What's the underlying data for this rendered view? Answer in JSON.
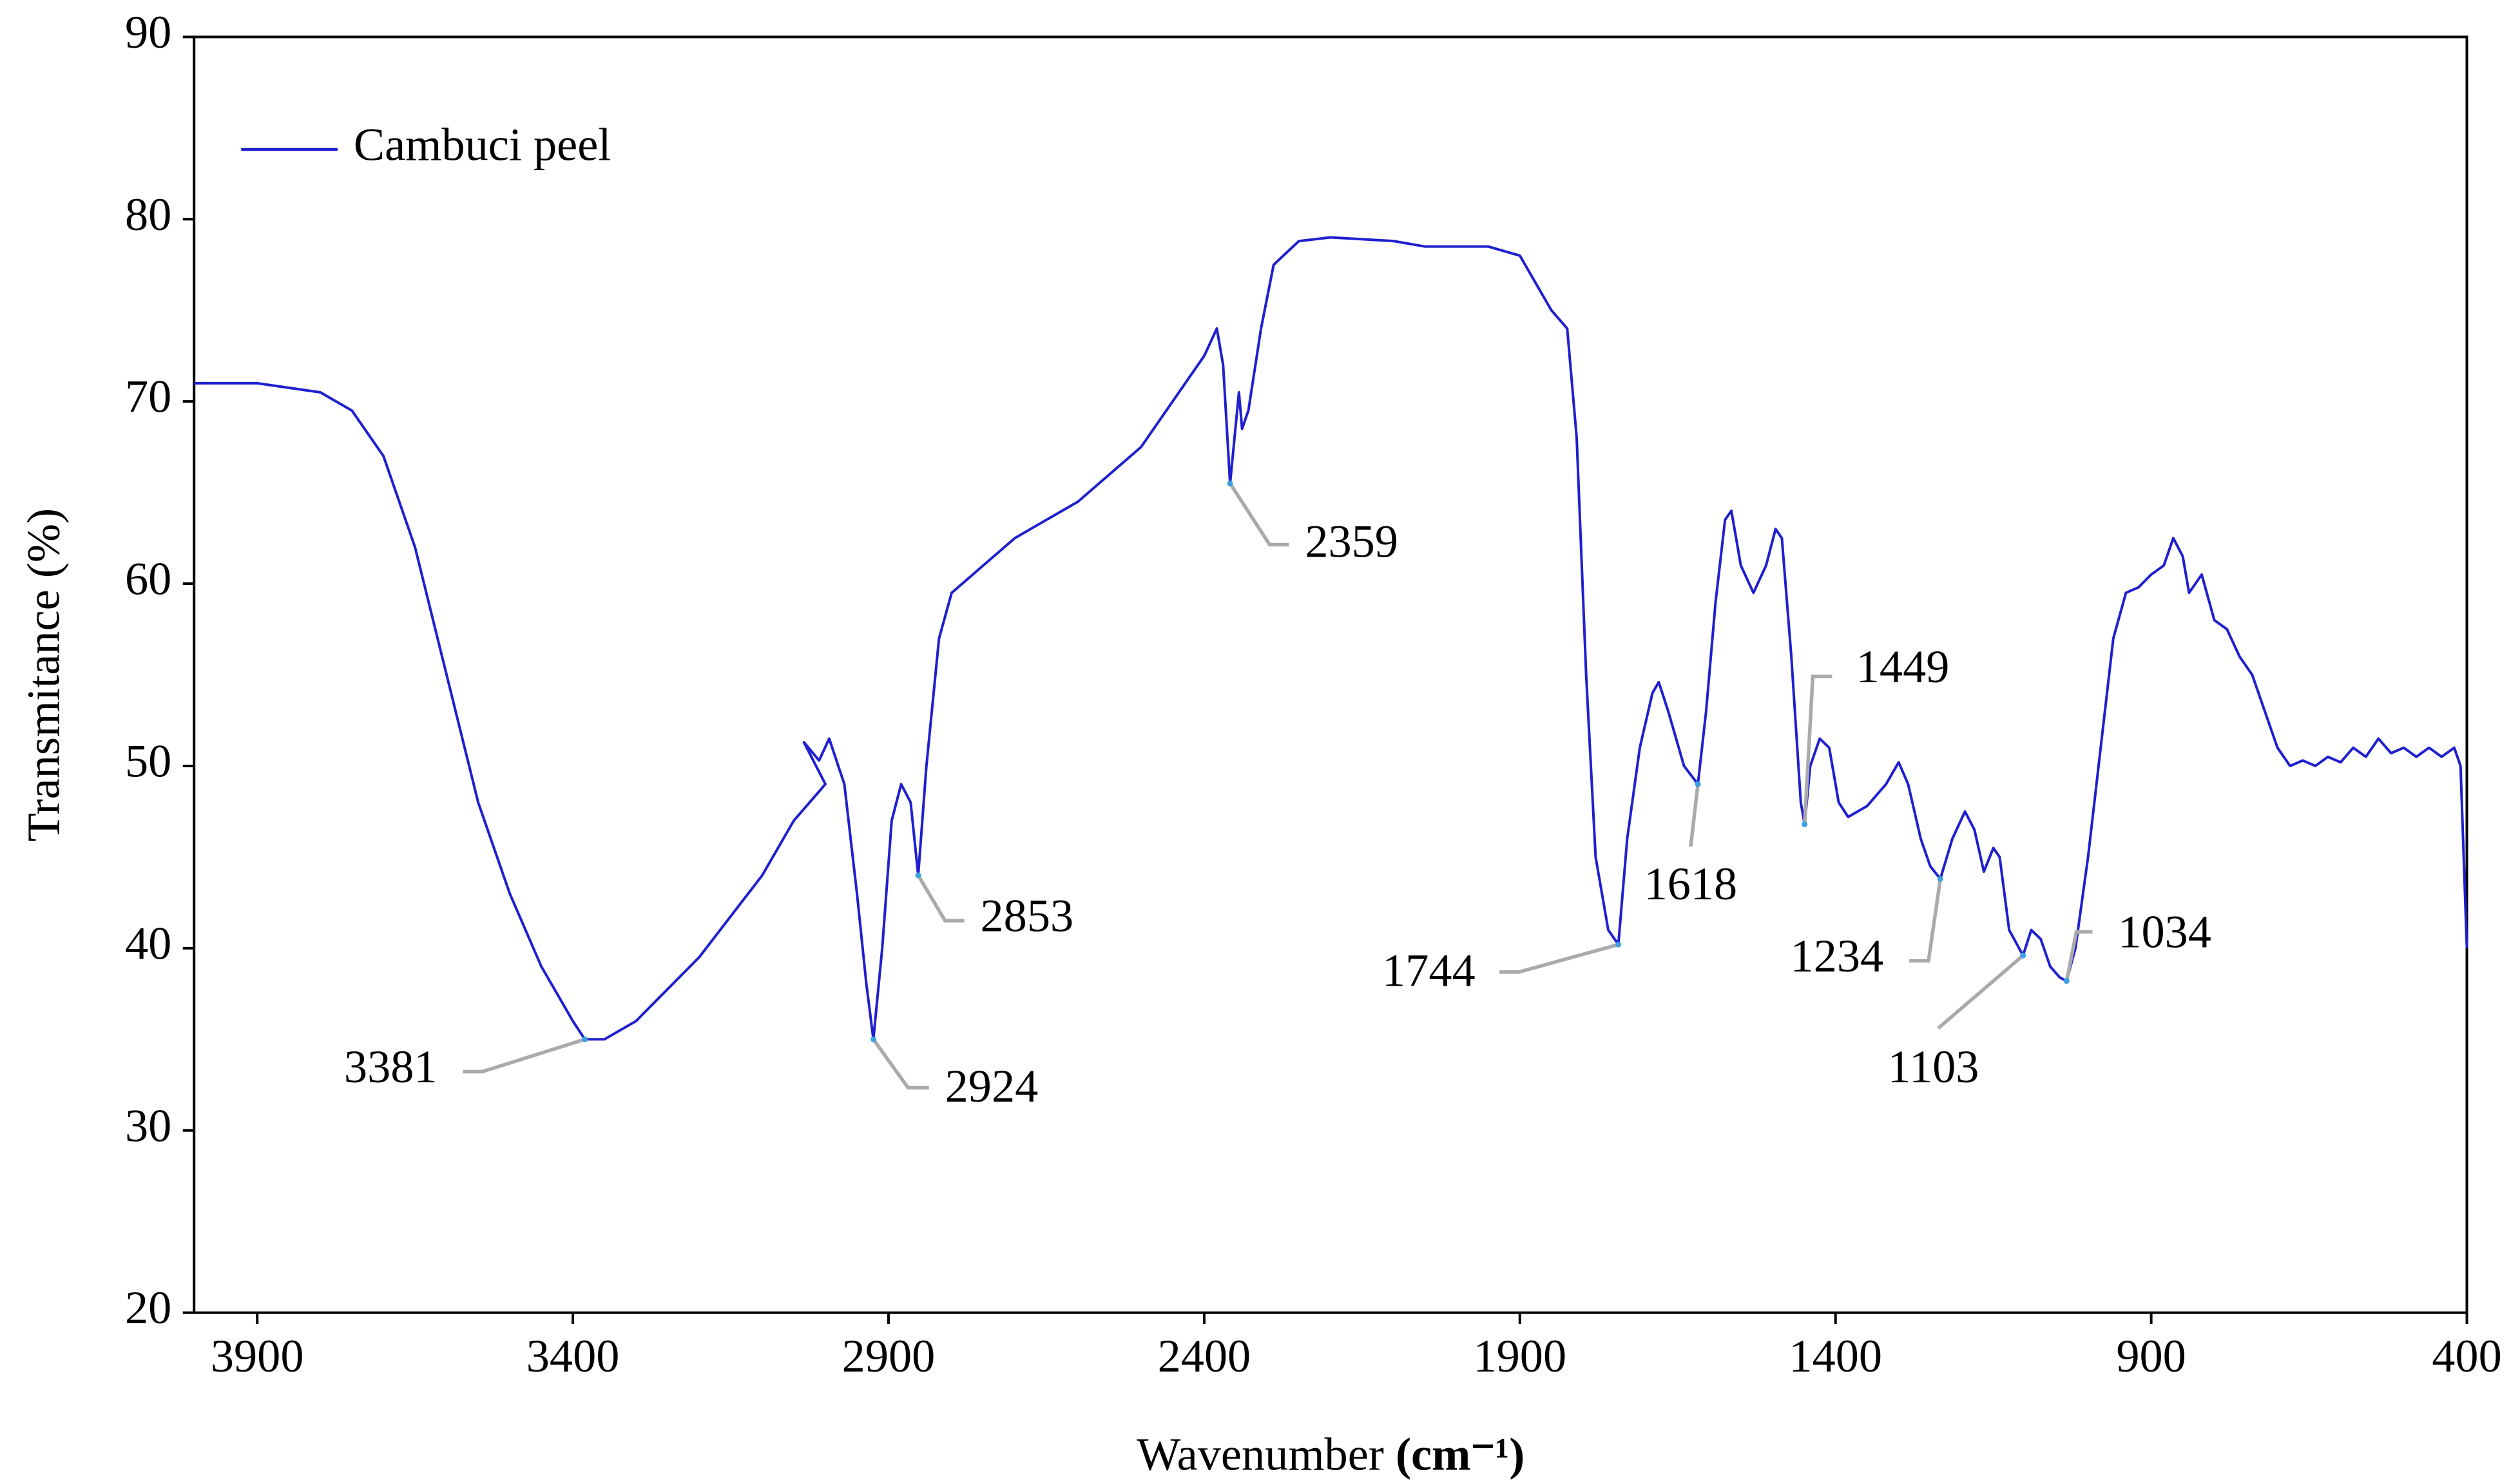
{
  "chart_data": {
    "type": "line",
    "xlabel": {
      "text": "Wavenumber",
      "unit": "(cm⁻¹)"
    },
    "ylabel": "Transmitance  (%)",
    "xlim": [
      4000,
      400
    ],
    "ylim": [
      20,
      90
    ],
    "xticks": [
      3900,
      3400,
      2900,
      2400,
      1900,
      1400,
      900,
      400
    ],
    "yticks": [
      20,
      30,
      40,
      50,
      60,
      70,
      80,
      90
    ],
    "grid": false,
    "legend": "upper left",
    "x": [
      4000,
      3900,
      3800,
      3750,
      3700,
      3650,
      3600,
      3550,
      3500,
      3450,
      3400,
      3381,
      3350,
      3300,
      3200,
      3100,
      3050,
      3000,
      3034,
      3010,
      2994,
      2970,
      2950,
      2935,
      2924,
      2910,
      2895,
      2880,
      2865,
      2853,
      2840,
      2820,
      2800,
      2750,
      2700,
      2600,
      2500,
      2450,
      2400,
      2380,
      2370,
      2359,
      2352,
      2345,
      2340,
      2330,
      2310,
      2290,
      2250,
      2200,
      2100,
      2050,
      1950,
      1900,
      1850,
      1825,
      1810,
      1795,
      1780,
      1760,
      1744,
      1730,
      1710,
      1690,
      1680,
      1665,
      1640,
      1618,
      1605,
      1590,
      1575,
      1565,
      1550,
      1530,
      1510,
      1495,
      1485,
      1470,
      1455,
      1449,
      1440,
      1425,
      1410,
      1395,
      1380,
      1350,
      1320,
      1300,
      1285,
      1265,
      1250,
      1234,
      1215,
      1195,
      1180,
      1165,
      1150,
      1140,
      1125,
      1103,
      1090,
      1075,
      1060,
      1045,
      1034,
      1020,
      1000,
      980,
      960,
      940,
      920,
      900,
      880,
      865,
      850,
      840,
      820,
      800,
      780,
      760,
      740,
      720,
      700,
      680,
      660,
      640,
      620,
      600,
      580,
      560,
      540,
      520,
      500,
      480,
      460,
      440,
      420,
      410,
      405,
      400
    ],
    "series": [
      {
        "name": "Cambuci peel",
        "color": "#1f1fd0",
        "values": [
          71,
          71,
          70.5,
          69.5,
          67,
          62,
          55,
          48,
          43,
          39,
          36,
          35,
          35,
          36,
          39.5,
          44,
          47,
          49,
          51.3,
          50.3,
          51.5,
          49,
          43,
          38,
          35,
          40,
          47,
          49,
          48,
          44,
          50,
          57,
          59.5,
          61,
          62.5,
          64.5,
          67.5,
          70,
          72.5,
          74,
          72,
          65.5,
          68,
          70.5,
          68.5,
          69.5,
          74,
          77.5,
          78.8,
          79,
          78.8,
          78.5,
          78.5,
          78,
          75,
          74,
          68,
          55,
          45,
          41,
          40.2,
          46,
          51,
          54,
          54.6,
          53,
          50,
          49,
          53,
          59,
          63.5,
          64,
          61,
          59.5,
          61,
          63,
          62.5,
          56,
          48,
          46.8,
          50,
          51.5,
          51,
          48,
          47.2,
          47.8,
          49,
          50.2,
          49,
          46,
          44.5,
          43.8,
          46,
          47.5,
          46.5,
          44.2,
          45.5,
          45,
          41,
          39.6,
          41,
          40.5,
          39,
          38.4,
          38.2,
          40,
          45,
          51,
          57,
          59.5,
          59.8,
          60.5,
          61,
          62.5,
          61.5,
          59.5,
          60.5,
          58,
          57.5,
          56,
          55,
          53,
          51,
          50,
          50.3,
          50,
          50.5,
          50.2,
          51,
          50.5,
          51.5,
          50.7,
          51,
          50.5,
          51,
          50.5,
          51,
          50,
          45,
          40
        ]
      }
    ],
    "annotations": [
      {
        "label": "3381",
        "x": 3381,
        "y": 35
      },
      {
        "label": "2924",
        "x": 2924,
        "y": 35
      },
      {
        "label": "2853",
        "x": 2853,
        "y": 44
      },
      {
        "label": "2359",
        "x": 2359,
        "y": 65.5
      },
      {
        "label": "1744",
        "x": 1744,
        "y": 40.2
      },
      {
        "label": "1618",
        "x": 1618,
        "y": 49
      },
      {
        "label": "1449",
        "x": 1449,
        "y": 46.8
      },
      {
        "label": "1234",
        "x": 1234,
        "y": 43.8
      },
      {
        "label": "1103",
        "x": 1103,
        "y": 39.6
      },
      {
        "label": "1034",
        "x": 1034,
        "y": 38.2
      }
    ]
  }
}
